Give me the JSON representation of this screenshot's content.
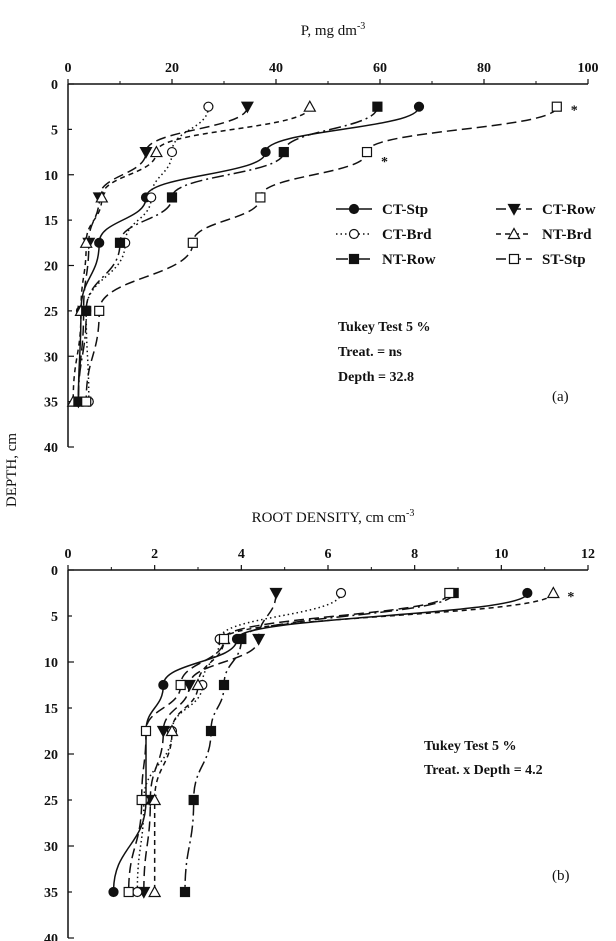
{
  "figure": {
    "ylabel": "DEPTH, cm",
    "star": "*"
  },
  "chart_data": [
    {
      "type": "line",
      "panel": "(a)",
      "xlabel": "P, mg dm",
      "xlabel_sup": "-3",
      "xlim": [
        0,
        100
      ],
      "xticks": [
        "0",
        "20",
        "40",
        "60",
        "80",
        "100"
      ],
      "ylim": [
        0,
        40
      ],
      "yticks": [
        "0",
        "5",
        "10",
        "15",
        "20",
        "25",
        "30",
        "35",
        "40"
      ],
      "y_inverted": true,
      "x_axis_position": "top",
      "annotation": [
        "Tukey Test 5 %",
        "Treat. = ns",
        "Depth = 32.8"
      ],
      "depth": [
        2.5,
        7.5,
        12.5,
        17.5,
        25,
        35
      ],
      "series": [
        {
          "name": "CT-Stp",
          "marker": "circle-filled",
          "dash": "solid",
          "x": [
            67.5,
            38,
            15,
            6,
            2.5,
            2
          ]
        },
        {
          "name": "CT-Row",
          "marker": "triangle-down-filled",
          "dash": "longdash",
          "x": [
            34.5,
            15,
            6,
            4,
            3,
            2
          ]
        },
        {
          "name": "CT-Brd",
          "marker": "circle-open",
          "dash": "dotted",
          "x": [
            27,
            20,
            16,
            11,
            3.5,
            4
          ]
        },
        {
          "name": "NT-Brd",
          "marker": "triangle-up-open",
          "dash": "shortdash",
          "x": [
            46.5,
            17,
            6.5,
            3.5,
            2.5,
            1
          ]
        },
        {
          "name": "NT-Row",
          "marker": "square-filled",
          "dash": "dashdot",
          "x": [
            59.5,
            41.5,
            20,
            10,
            3.5,
            2
          ]
        },
        {
          "name": "ST-Stp",
          "marker": "square-open",
          "dash": "longdash",
          "x": [
            94,
            57.5,
            37,
            24,
            6,
            3.5
          ]
        }
      ],
      "significance_marks": [
        {
          "depth": 2.5,
          "text": "*"
        },
        {
          "depth": 7.5,
          "text": "*"
        }
      ]
    },
    {
      "type": "line",
      "panel": "(b)",
      "xlabel": "ROOT DENSITY, cm cm",
      "xlabel_sup": "-3",
      "xlim": [
        0,
        12
      ],
      "xticks": [
        "0",
        "2",
        "4",
        "6",
        "8",
        "10",
        "12"
      ],
      "ylim": [
        0,
        40
      ],
      "yticks": [
        "0",
        "5",
        "10",
        "15",
        "20",
        "25",
        "30",
        "35",
        "40"
      ],
      "y_inverted": true,
      "x_axis_position": "top",
      "annotation": [
        "Tukey Test 5 %",
        "Treat. x Depth = 4.2"
      ],
      "depth": [
        2.5,
        7.5,
        12.5,
        17.5,
        25,
        35
      ],
      "series": [
        {
          "name": "CT-Stp",
          "marker": "circle-filled",
          "dash": "solid",
          "x": [
            10.6,
            3.9,
            2.2,
            1.8,
            1.8,
            1.05
          ]
        },
        {
          "name": "CT-Row",
          "marker": "triangle-down-filled",
          "dash": "longdash",
          "x": [
            4.8,
            4.4,
            2.8,
            2.2,
            1.9,
            1.75
          ]
        },
        {
          "name": "CT-Brd",
          "marker": "circle-open",
          "dash": "dotted",
          "x": [
            6.3,
            3.5,
            3.1,
            2.4,
            1.75,
            1.6
          ]
        },
        {
          "name": "NT-Brd",
          "marker": "triangle-up-open",
          "dash": "shortdash",
          "x": [
            11.2,
            3.6,
            3.0,
            2.4,
            2.0,
            2.0
          ]
        },
        {
          "name": "NT-Row",
          "marker": "square-filled",
          "dash": "dashdot",
          "x": [
            8.9,
            4.0,
            3.6,
            3.3,
            2.9,
            2.7
          ]
        },
        {
          "name": "ST-Stp",
          "marker": "square-open",
          "dash": "longdash",
          "x": [
            8.8,
            3.6,
            2.6,
            1.8,
            1.7,
            1.4
          ]
        }
      ],
      "significance_marks": [
        {
          "depth": 2.5,
          "text": "*"
        }
      ]
    }
  ]
}
